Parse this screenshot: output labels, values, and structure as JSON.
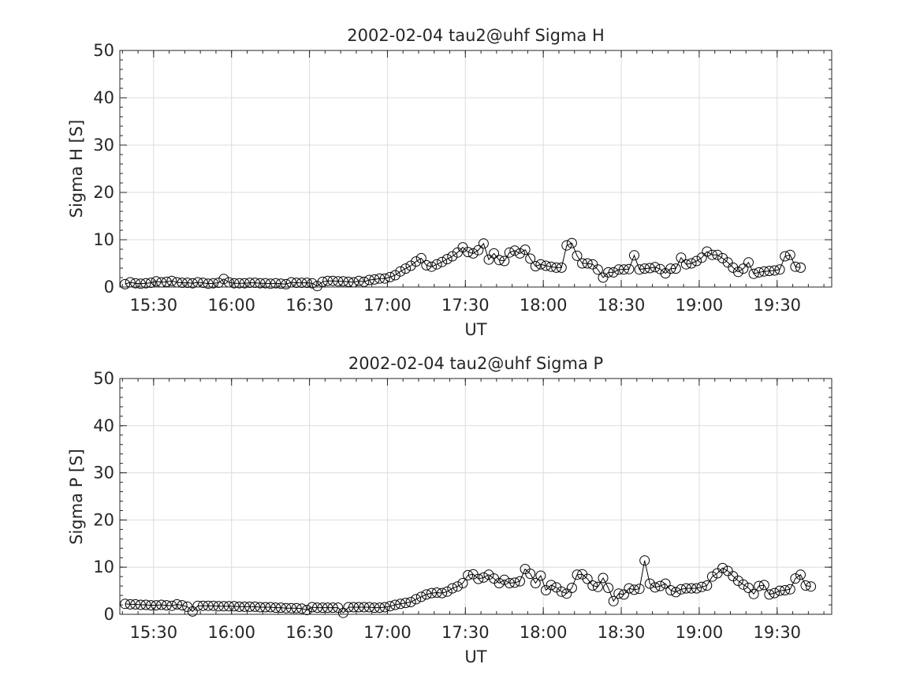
{
  "chart_data": [
    {
      "type": "line",
      "title": "2002-02-04  tau2@uhf Sigma H",
      "xlabel": "UT",
      "ylabel": "Sigma H [S]",
      "ylim": [
        0,
        50
      ],
      "yticks": [
        0,
        10,
        20,
        30,
        40,
        50
      ],
      "xlim": [
        "15:17",
        "19:51"
      ],
      "xticks": [
        "15:30",
        "16:00",
        "16:30",
        "17:00",
        "17:30",
        "18:00",
        "18:30",
        "19:00",
        "19:30"
      ],
      "grid": true,
      "marker": "open-circle",
      "x_start": "15:17",
      "x_step_min": 2,
      "values": [
        0.6,
        1.0,
        0.8,
        0.7,
        0.8,
        0.9,
        1.2,
        1.0,
        1.1,
        1.3,
        1.0,
        0.9,
        0.9,
        0.8,
        1.0,
        0.9,
        0.7,
        0.8,
        0.9,
        1.7,
        1.0,
        0.8,
        0.8,
        0.8,
        0.9,
        0.9,
        0.8,
        0.8,
        0.7,
        0.8,
        0.7,
        0.6,
        1.0,
        0.9,
        0.9,
        0.9,
        0.8,
        0.2,
        1.1,
        1.3,
        1.3,
        1.2,
        1.2,
        1.1,
        1.0,
        1.3,
        1.1,
        1.5,
        1.6,
        1.8,
        1.8,
        2.1,
        2.5,
        3.3,
        3.9,
        4.5,
        5.4,
        6.1,
        4.6,
        4.3,
        4.8,
        5.3,
        5.9,
        6.5,
        7.3,
        8.4,
        7.4,
        7.1,
        7.8,
        9.2,
        5.8,
        7.1,
        5.7,
        5.5,
        7.3,
        7.7,
        7.1,
        7.9,
        6.0,
        4.4,
        4.8,
        4.5,
        4.3,
        4.1,
        4.1,
        8.8,
        9.3,
        6.6,
        5.0,
        5.0,
        4.8,
        3.7,
        2.0,
        3.1,
        3.1,
        3.7,
        3.7,
        3.8,
        6.7,
        3.7,
        3.9,
        4.0,
        4.2,
        3.8,
        2.9,
        3.9,
        3.9,
        6.2,
        4.8,
        5.0,
        5.5,
        6.2,
        7.5,
        6.8,
        6.8,
        6.1,
        5.2,
        4.1,
        3.2,
        3.9,
        5.2,
        2.8,
        3.1,
        3.3,
        3.4,
        3.5,
        3.7,
        6.5,
        6.8,
        4.3,
        4.1
      ]
    },
    {
      "type": "line",
      "title": "2002-02-04  tau2@uhf Sigma P",
      "xlabel": "UT",
      "ylabel": "Sigma P [S]",
      "ylim": [
        0,
        50
      ],
      "yticks": [
        0,
        10,
        20,
        30,
        40,
        50
      ],
      "xlim": [
        "15:17",
        "19:51"
      ],
      "xticks": [
        "15:30",
        "16:00",
        "16:30",
        "17:00",
        "17:30",
        "18:00",
        "18:30",
        "19:00",
        "19:30"
      ],
      "grid": true,
      "marker": "open-circle",
      "x_start": "15:17",
      "x_step_min": 2,
      "values": [
        2.2,
        2.1,
        2.1,
        2.0,
        2.0,
        1.9,
        1.9,
        2.0,
        1.9,
        1.8,
        2.1,
        1.9,
        1.6,
        0.6,
        1.8,
        1.8,
        1.8,
        1.8,
        1.7,
        1.7,
        1.7,
        1.7,
        1.6,
        1.6,
        1.6,
        1.6,
        1.5,
        1.5,
        1.5,
        1.4,
        1.4,
        1.3,
        1.3,
        1.3,
        1.2,
        0.9,
        1.5,
        1.4,
        1.4,
        1.4,
        1.4,
        1.4,
        0.3,
        1.5,
        1.5,
        1.5,
        1.5,
        1.5,
        1.4,
        1.4,
        1.5,
        1.7,
        2.0,
        2.2,
        2.4,
        2.6,
        3.2,
        3.7,
        4.2,
        4.5,
        4.6,
        4.5,
        4.8,
        5.5,
        5.9,
        6.6,
        8.3,
        8.5,
        7.5,
        7.8,
        8.4,
        7.6,
        6.6,
        7.3,
        6.6,
        6.7,
        7.0,
        9.6,
        8.6,
        6.6,
        8.2,
        5.1,
        6.2,
        5.7,
        4.8,
        4.4,
        5.6,
        8.4,
        8.5,
        7.5,
        6.1,
        5.8,
        7.7,
        5.6,
        2.8,
        4.4,
        4.2,
        5.5,
        5.2,
        5.4,
        11.4,
        6.5,
        5.7,
        6.0,
        6.5,
        5.1,
        4.7,
        5.3,
        5.5,
        5.5,
        5.5,
        5.8,
        6.1,
        8.0,
        8.7,
        9.8,
        9.2,
        8.1,
        7.1,
        6.3,
        5.6,
        4.3,
        6.0,
        6.2,
        4.2,
        4.5,
        5.0,
        5.1,
        5.3,
        7.6,
        8.4,
        6.1,
        5.9
      ]
    }
  ]
}
